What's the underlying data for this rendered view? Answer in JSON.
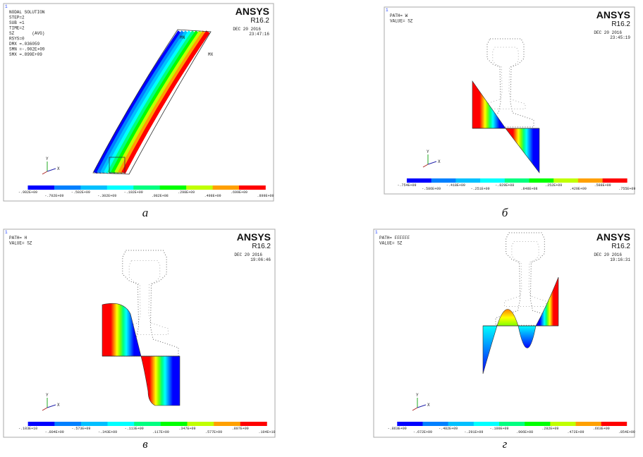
{
  "panels": [
    {
      "number": "1",
      "info": [
        "NODAL SOLUTION",
        "STEP=2",
        "SUB =1",
        "TIME=2",
        "SZ       (AVG)",
        "RSYS=0",
        "DMX =.036059",
        "SMN =-.902E+09",
        "SMX =.899E+09"
      ],
      "logo": "ANSYS",
      "version": "R16.2",
      "date": "DEC 20 2016",
      "time": "23:47:16",
      "markers": [
        "MN",
        "MX"
      ],
      "axis_y": "Y",
      "axis_x": "X",
      "legend_top": [
        "-.902E+09",
        "-.502E+09",
        "-.102E+09",
        ".298E+09",
        ".699E+09"
      ],
      "legend_bottom": [
        "-.702E+09",
        "-.302E+09",
        ".982E+08",
        ".498E+09",
        ".899E+09"
      ],
      "caption": "а"
    },
    {
      "number": "1",
      "info": [
        "PATH= W",
        "VALUE= SZ"
      ],
      "logo": "ANSYS",
      "version": "R16.2",
      "date": "DEC 20 2016",
      "time": "23:45:19",
      "axis_y": "Y",
      "axis_x": "X",
      "legend_top": [
        "-.754E+09",
        "-.418E+09",
        "-.829E+08",
        ".252E+09",
        ".588E+09"
      ],
      "legend_bottom": [
        "-.586E+09",
        "-.251E+09",
        ".848E+08",
        ".420E+09",
        ".755E+09"
      ],
      "caption": "б"
    },
    {
      "number": "1",
      "info": [
        "PATH= H",
        "VALUE= SZ"
      ],
      "logo": "ANSYS",
      "version": "R16.2",
      "date": "DEC 20 2016",
      "time": "19:06:46",
      "axis_y": "Y",
      "axis_x": "X",
      "legend_top": [
        "-.103E+10",
        "-.573E+09",
        "-.113E+09",
        ".347E+09",
        ".807E+09"
      ],
      "legend_bottom": [
        "-.804E+09",
        "-.343E+09",
        ".117E+09",
        ".577E+09",
        ".104E+10"
      ],
      "caption": "в"
    },
    {
      "number": "1",
      "info": [
        "PATH= FFFFFF",
        "VALUE= SZ"
      ],
      "logo": "ANSYS",
      "version": "R16.2",
      "date": "DEC 20 2016",
      "time": "19:16:31",
      "axis_y": "Y",
      "axis_x": "X",
      "legend_top": [
        "-.863E+09",
        "-.482E+09",
        "-.100E+09",
        ".282E+09",
        ".663E+09"
      ],
      "legend_bottom": [
        "-.672E+09",
        "-.291E+09",
        ".906E+08",
        ".472E+09",
        ".854E+09"
      ],
      "caption": "г"
    }
  ]
}
